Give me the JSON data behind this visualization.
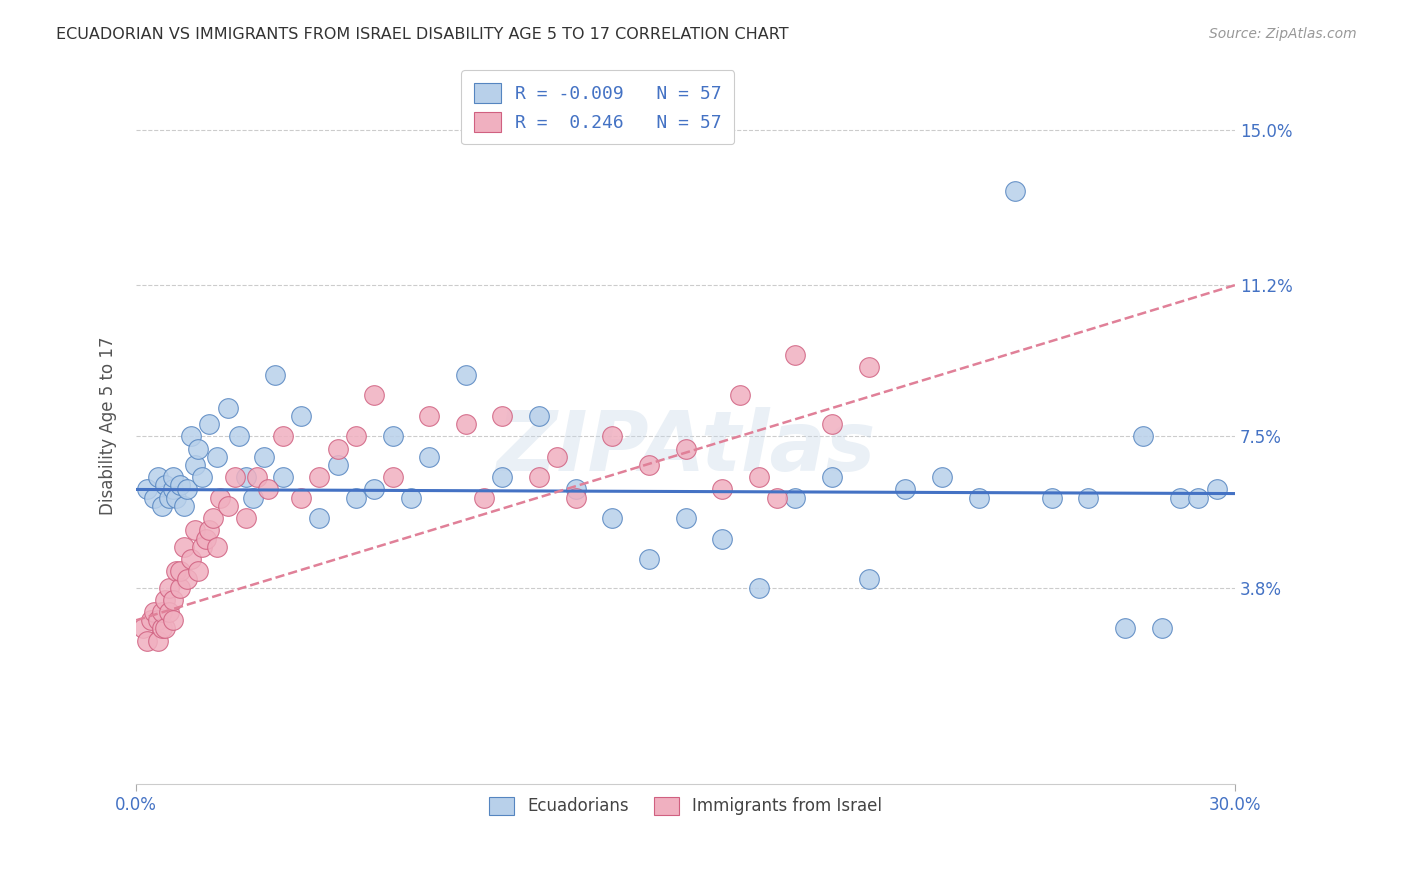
{
  "title": "ECUADORIAN VS IMMIGRANTS FROM ISRAEL DISABILITY AGE 5 TO 17 CORRELATION CHART",
  "source": "Source: ZipAtlas.com",
  "ylabel": "Disability Age 5 to 17",
  "xlim": [
    0.0,
    0.3
  ],
  "ylim": [
    -0.01,
    0.165
  ],
  "xtick_positions": [
    0.0,
    0.3
  ],
  "xticklabels": [
    "0.0%",
    "30.0%"
  ],
  "ytick_positions": [
    0.038,
    0.075,
    0.112,
    0.15
  ],
  "ytick_labels": [
    "3.8%",
    "7.5%",
    "11.2%",
    "15.0%"
  ],
  "grid_color": "#cccccc",
  "blue_fill": "#b8d0ea",
  "blue_edge": "#5585c0",
  "pink_fill": "#f0b0c0",
  "pink_edge": "#d06080",
  "blue_line_color": "#4472c4",
  "pink_line_color": "#e08098",
  "R_blue": -0.009,
  "R_pink": 0.246,
  "N": 57,
  "watermark": "ZIPAtlas",
  "blue_scatter_x": [
    0.003,
    0.005,
    0.006,
    0.007,
    0.008,
    0.009,
    0.01,
    0.01,
    0.011,
    0.012,
    0.013,
    0.014,
    0.015,
    0.016,
    0.017,
    0.018,
    0.02,
    0.022,
    0.025,
    0.028,
    0.03,
    0.032,
    0.035,
    0.038,
    0.04,
    0.045,
    0.05,
    0.055,
    0.06,
    0.065,
    0.07,
    0.075,
    0.08,
    0.09,
    0.1,
    0.11,
    0.12,
    0.13,
    0.14,
    0.15,
    0.16,
    0.17,
    0.18,
    0.19,
    0.2,
    0.21,
    0.22,
    0.23,
    0.24,
    0.25,
    0.26,
    0.27,
    0.275,
    0.28,
    0.285,
    0.29,
    0.295
  ],
  "blue_scatter_y": [
    0.062,
    0.06,
    0.065,
    0.058,
    0.063,
    0.06,
    0.062,
    0.065,
    0.06,
    0.063,
    0.058,
    0.062,
    0.075,
    0.068,
    0.072,
    0.065,
    0.078,
    0.07,
    0.082,
    0.075,
    0.065,
    0.06,
    0.07,
    0.09,
    0.065,
    0.08,
    0.055,
    0.068,
    0.06,
    0.062,
    0.075,
    0.06,
    0.07,
    0.09,
    0.065,
    0.08,
    0.062,
    0.055,
    0.045,
    0.055,
    0.05,
    0.038,
    0.06,
    0.065,
    0.04,
    0.062,
    0.065,
    0.06,
    0.135,
    0.06,
    0.06,
    0.028,
    0.075,
    0.028,
    0.06,
    0.06,
    0.062
  ],
  "pink_scatter_x": [
    0.002,
    0.003,
    0.004,
    0.005,
    0.006,
    0.006,
    0.007,
    0.007,
    0.008,
    0.008,
    0.009,
    0.009,
    0.01,
    0.01,
    0.011,
    0.012,
    0.012,
    0.013,
    0.014,
    0.015,
    0.016,
    0.017,
    0.018,
    0.019,
    0.02,
    0.021,
    0.022,
    0.023,
    0.025,
    0.027,
    0.03,
    0.033,
    0.036,
    0.04,
    0.045,
    0.05,
    0.055,
    0.06,
    0.065,
    0.07,
    0.08,
    0.09,
    0.095,
    0.1,
    0.11,
    0.115,
    0.12,
    0.13,
    0.14,
    0.15,
    0.16,
    0.165,
    0.17,
    0.175,
    0.18,
    0.19,
    0.2
  ],
  "pink_scatter_y": [
    0.028,
    0.025,
    0.03,
    0.032,
    0.025,
    0.03,
    0.028,
    0.032,
    0.035,
    0.028,
    0.032,
    0.038,
    0.03,
    0.035,
    0.042,
    0.038,
    0.042,
    0.048,
    0.04,
    0.045,
    0.052,
    0.042,
    0.048,
    0.05,
    0.052,
    0.055,
    0.048,
    0.06,
    0.058,
    0.065,
    0.055,
    0.065,
    0.062,
    0.075,
    0.06,
    0.065,
    0.072,
    0.075,
    0.085,
    0.065,
    0.08,
    0.078,
    0.06,
    0.08,
    0.065,
    0.07,
    0.06,
    0.075,
    0.068,
    0.072,
    0.062,
    0.085,
    0.065,
    0.06,
    0.095,
    0.078,
    0.092
  ],
  "blue_line_x": [
    0.0,
    0.3
  ],
  "blue_line_y": [
    0.062,
    0.061
  ],
  "pink_line_x": [
    0.0,
    0.3
  ],
  "pink_line_y": [
    0.03,
    0.112
  ]
}
